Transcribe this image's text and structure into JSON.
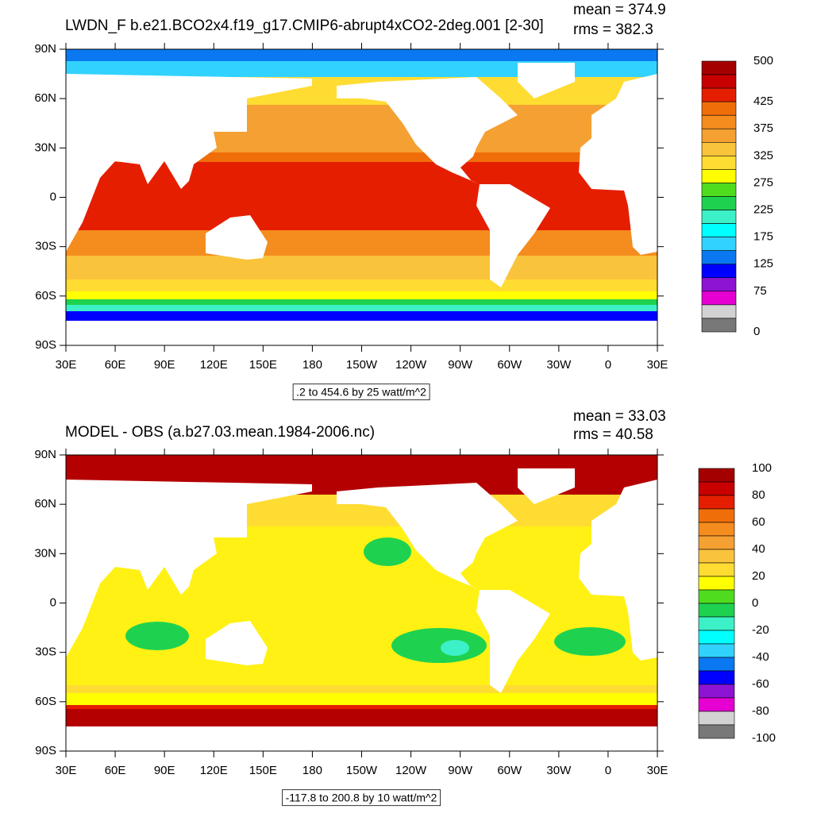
{
  "maps": [
    {
      "type": "map",
      "title": "LWDN_F b.e21.BCO2x4.f19_g17.CMIP6-abrupt4xCO2-2deg.001 [2-30]",
      "mean": "mean = 374.9",
      "rms": "rms = 382.3",
      "info": ".2 to 454.6 by 25 watt/m^2",
      "xlim": [
        30,
        390
      ],
      "ylim": [
        -90,
        90
      ],
      "xticks": [
        {
          "value": 30,
          "label": "30E"
        },
        {
          "value": 60,
          "label": "60E"
        },
        {
          "value": 90,
          "label": "90E"
        },
        {
          "value": 120,
          "label": "120E"
        },
        {
          "value": 150,
          "label": "150E"
        },
        180,
        {
          "value": 210,
          "label": "150W"
        },
        {
          "value": 240,
          "label": "120W"
        },
        {
          "value": 270,
          "label": "90W"
        },
        {
          "value": 300,
          "label": "60W"
        },
        {
          "value": 330,
          "label": "30W"
        },
        {
          "value": 360,
          "label": "0"
        },
        {
          "value": 390,
          "label": "30E"
        }
      ],
      "yticks": [
        {
          "value": 90,
          "label": "90N"
        },
        {
          "value": 60,
          "label": "60N"
        },
        {
          "value": 30,
          "label": "30N"
        },
        0,
        {
          "value": -30,
          "label": "30S"
        },
        {
          "value": -60,
          "label": "60S"
        },
        {
          "value": -90,
          "label": "90S"
        }
      ],
      "colorbar": {
        "levels": [
          500,
          null,
          null,
          425,
          null,
          375,
          null,
          325,
          null,
          275,
          null,
          225,
          null,
          175,
          null,
          125,
          null,
          75,
          null,
          null,
          0
        ],
        "colors": [
          "#a50000",
          "#c80000",
          "#e61e00",
          "#f06e0a",
          "#f58c1e",
          "#f5a032",
          "#fac33c",
          "#ffdc32",
          "#ffff00",
          "#50dc1e",
          "#1ed250",
          "#3cf0c8",
          "#00ffff",
          "#32d2ff",
          "#0a78f0",
          "#0000ff",
          "#8c14d2",
          "#e600d2",
          "#d2d2d2",
          "#787878"
        ]
      }
    },
    {
      "type": "map",
      "title": "MODEL - OBS (a.b27.03.mean.1984-2006.nc)",
      "mean": "mean = 33.03",
      "rms": "rms = 40.58",
      "info": "-117.8 to 200.8 by 10 watt/m^2",
      "xlim": [
        30,
        390
      ],
      "ylim": [
        -90,
        90
      ],
      "xticks": [
        {
          "value": 30,
          "label": "30E"
        },
        {
          "value": 60,
          "label": "60E"
        },
        {
          "value": 90,
          "label": "90E"
        },
        {
          "value": 120,
          "label": "120E"
        },
        {
          "value": 150,
          "label": "150E"
        },
        180,
        {
          "value": 210,
          "label": "150W"
        },
        {
          "value": 240,
          "label": "120W"
        },
        {
          "value": 270,
          "label": "90W"
        },
        {
          "value": 300,
          "label": "60W"
        },
        {
          "value": 330,
          "label": "30W"
        },
        {
          "value": 360,
          "label": "0"
        },
        {
          "value": 390,
          "label": "30E"
        }
      ],
      "yticks": [
        {
          "value": 90,
          "label": "90N"
        },
        {
          "value": 60,
          "label": "60N"
        },
        {
          "value": 30,
          "label": "30N"
        },
        0,
        {
          "value": -30,
          "label": "30S"
        },
        {
          "value": -60,
          "label": "60S"
        },
        {
          "value": -90,
          "label": "90S"
        }
      ],
      "colorbar": {
        "levels": [
          100,
          null,
          80,
          null,
          60,
          null,
          40,
          null,
          20,
          null,
          0,
          null,
          -20,
          null,
          -40,
          null,
          -60,
          null,
          -80,
          null,
          -100
        ],
        "colors": [
          "#a50000",
          "#c80000",
          "#e61e00",
          "#f06e0a",
          "#f58c1e",
          "#f5a032",
          "#fac33c",
          "#ffdc32",
          "#ffff00",
          "#50dc1e",
          "#1ed250",
          "#3cf0c8",
          "#00ffff",
          "#32d2ff",
          "#0a78f0",
          "#0000ff",
          "#8c14d2",
          "#e600d2",
          "#d2d2d2",
          "#787878"
        ]
      }
    }
  ]
}
